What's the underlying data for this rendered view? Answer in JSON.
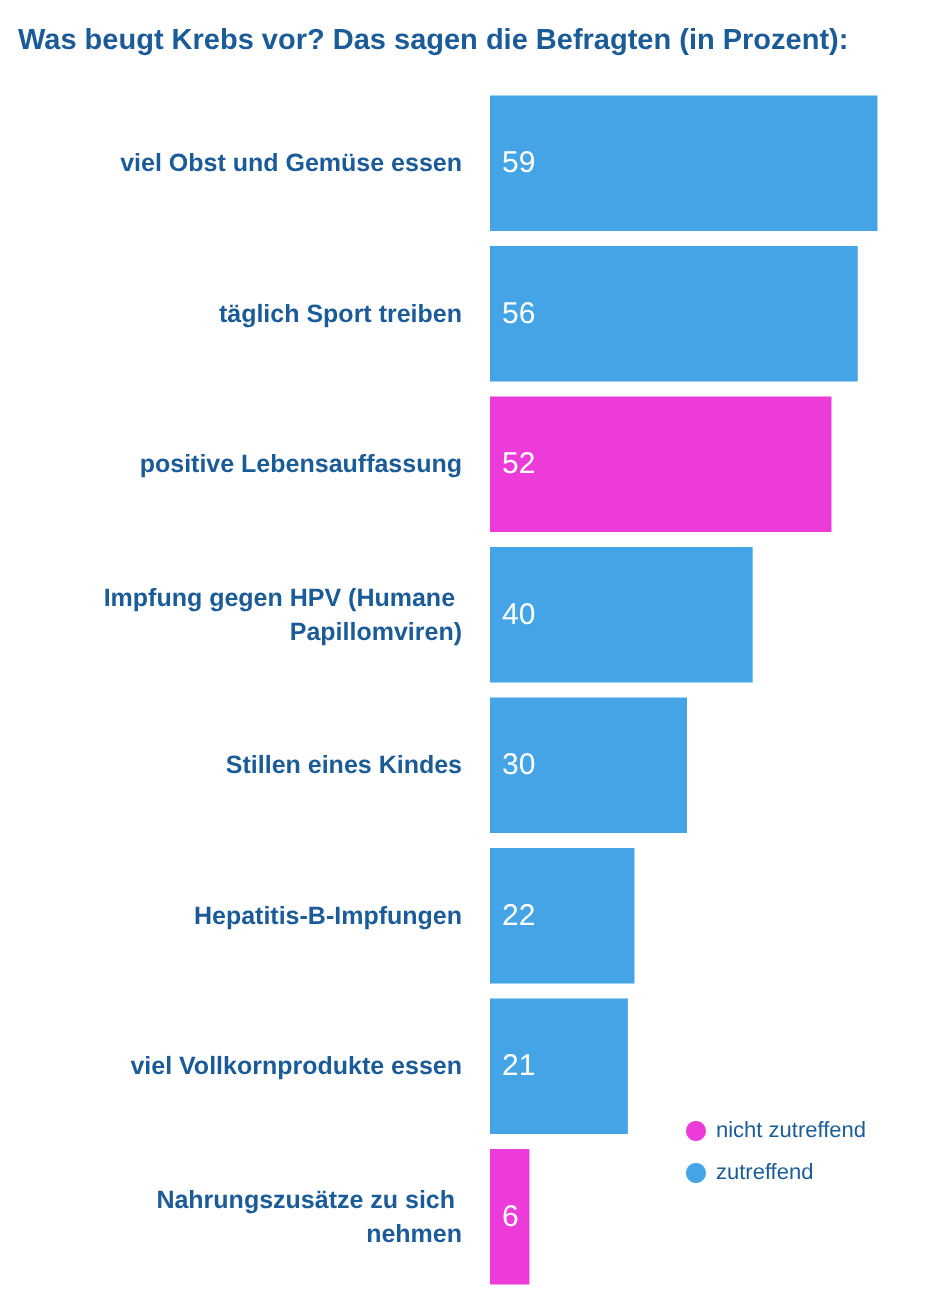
{
  "chart_data": {
    "type": "bar",
    "orientation": "horizontal",
    "title": "Was beugt Krebs vor? Das sagen die Befragten (in Prozent):",
    "categories": [
      "viel Obst und Gemüse essen",
      "täglich Sport treiben",
      "positive Lebensauffassung",
      "Impfung gegen HPV (Humane Papillomviren)",
      "Stillen eines Kindes",
      "Hepatitis-B-Impfungen",
      "viel Vollkornprodukte essen",
      "Nahrungszusätze zu sich nehmen"
    ],
    "series": [
      {
        "name": "nicht zutreffend",
        "color": "#ec3bd8",
        "values": [
          null,
          null,
          52,
          null,
          null,
          null,
          null,
          6
        ]
      },
      {
        "name": "zutreffend",
        "color": "#44a4e6",
        "values": [
          59,
          56,
          null,
          40,
          30,
          22,
          21,
          null
        ]
      }
    ],
    "data_labels": true,
    "legend": "bottom right"
  }
}
